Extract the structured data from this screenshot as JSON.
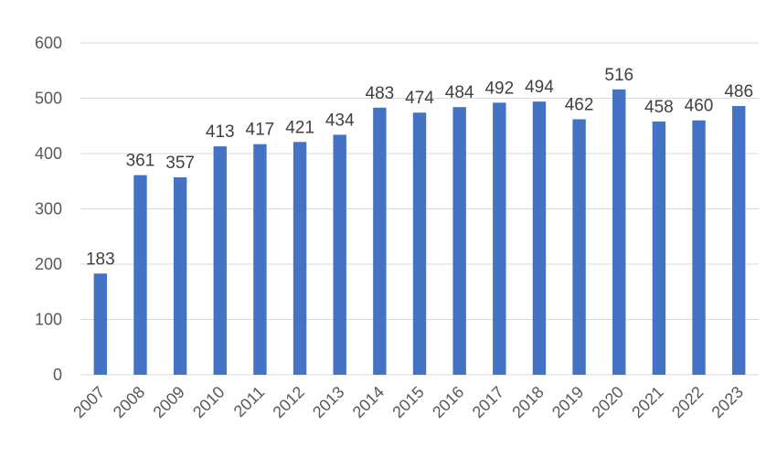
{
  "chart_data": {
    "type": "bar",
    "title": "",
    "xlabel": "",
    "ylabel": "",
    "categories": [
      "2007",
      "2008",
      "2009",
      "2010",
      "2011",
      "2012",
      "2013",
      "2014",
      "2015",
      "2016",
      "2017",
      "2018",
      "2019",
      "2020",
      "2021",
      "2022",
      "2023"
    ],
    "values": [
      183,
      361,
      357,
      413,
      417,
      421,
      434,
      483,
      474,
      484,
      492,
      494,
      462,
      516,
      458,
      460,
      486
    ],
    "ylim": [
      0,
      600
    ],
    "yticks": [
      0,
      100,
      200,
      300,
      400,
      500,
      600
    ],
    "grid": true,
    "legend": "none",
    "bar_color": "#4472c4",
    "data_labels": true
  }
}
